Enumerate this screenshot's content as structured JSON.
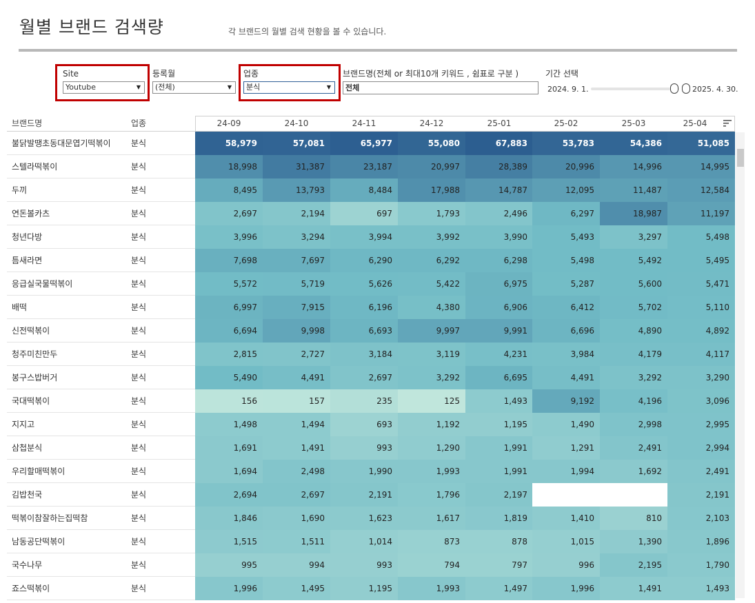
{
  "page": {
    "title": "월별 브랜드 검색량",
    "subtitle": "각 브랜드의 월별 검색 현황을 볼 수 있습니다."
  },
  "filters": {
    "site": {
      "label": "Site",
      "value": "Youtube"
    },
    "reg_month": {
      "label": "등록월",
      "value": "(전체)"
    },
    "category": {
      "label": "업종",
      "value": "분식"
    },
    "brand": {
      "label": "브랜드명(전체 or 최대10개 키워드 , 쉼표로 구분 )",
      "value": "전체"
    },
    "period": {
      "label": "기간 선택",
      "start": "2024. 9. 1.",
      "end": "2025. 4. 30."
    }
  },
  "table": {
    "col_brand": "브랜드명",
    "col_category": "업종",
    "months": [
      "24-09",
      "24-10",
      "24-11",
      "24-12",
      "25-01",
      "25-02",
      "25-03",
      "25-04"
    ],
    "rows": [
      {
        "brand": "불닭발땡초동대문엽기떡볶이",
        "category": "분식",
        "values": [
          "58,979",
          "57,081",
          "65,977",
          "55,080",
          "67,883",
          "53,783",
          "54,386",
          "51,085"
        ]
      },
      {
        "brand": "스텔라떡볶이",
        "category": "분식",
        "values": [
          "18,998",
          "31,387",
          "23,187",
          "20,997",
          "28,389",
          "20,996",
          "14,996",
          "14,995"
        ]
      },
      {
        "brand": "두끼",
        "category": "분식",
        "values": [
          "8,495",
          "13,793",
          "8,484",
          "17,988",
          "14,787",
          "12,095",
          "11,487",
          "12,584"
        ]
      },
      {
        "brand": "연돈볼카츠",
        "category": "분식",
        "values": [
          "2,697",
          "2,194",
          "697",
          "1,793",
          "2,496",
          "6,297",
          "18,987",
          "11,197"
        ]
      },
      {
        "brand": "청년다방",
        "category": "분식",
        "values": [
          "3,996",
          "3,294",
          "3,994",
          "3,992",
          "3,990",
          "5,493",
          "3,297",
          "5,498"
        ]
      },
      {
        "brand": "틈새라면",
        "category": "분식",
        "values": [
          "7,698",
          "7,697",
          "6,290",
          "6,292",
          "6,298",
          "5,498",
          "5,492",
          "5,495"
        ]
      },
      {
        "brand": "응급실국물떡볶이",
        "category": "분식",
        "values": [
          "5,572",
          "5,719",
          "5,626",
          "5,422",
          "6,975",
          "5,287",
          "5,600",
          "5,471"
        ]
      },
      {
        "brand": "배떡",
        "category": "분식",
        "values": [
          "6,997",
          "7,915",
          "6,196",
          "4,380",
          "6,906",
          "6,412",
          "5,702",
          "5,110"
        ]
      },
      {
        "brand": "신전떡볶이",
        "category": "분식",
        "values": [
          "6,694",
          "9,998",
          "6,693",
          "9,997",
          "9,991",
          "6,696",
          "4,890",
          "4,892"
        ]
      },
      {
        "brand": "청주미친만두",
        "category": "분식",
        "values": [
          "2,815",
          "2,727",
          "3,184",
          "3,119",
          "4,231",
          "3,984",
          "4,179",
          "4,117"
        ]
      },
      {
        "brand": "봉구스밥버거",
        "category": "분식",
        "values": [
          "5,490",
          "4,491",
          "2,697",
          "3,292",
          "6,695",
          "4,491",
          "3,292",
          "3,290"
        ]
      },
      {
        "brand": "국대떡볶이",
        "category": "분식",
        "values": [
          "156",
          "157",
          "235",
          "125",
          "1,493",
          "9,192",
          "4,196",
          "3,096"
        ]
      },
      {
        "brand": "지지고",
        "category": "분식",
        "values": [
          "1,498",
          "1,494",
          "693",
          "1,192",
          "1,195",
          "1,490",
          "2,998",
          "2,995"
        ]
      },
      {
        "brand": "삼첩분식",
        "category": "분식",
        "values": [
          "1,691",
          "1,491",
          "993",
          "1,290",
          "1,991",
          "1,291",
          "2,491",
          "2,994"
        ]
      },
      {
        "brand": "우리할매떡볶이",
        "category": "분식",
        "values": [
          "1,694",
          "2,498",
          "1,990",
          "1,993",
          "1,991",
          "1,994",
          "1,692",
          "2,491"
        ]
      },
      {
        "brand": "김밥천국",
        "category": "분식",
        "values": [
          "2,694",
          "2,697",
          "2,191",
          "1,796",
          "2,197",
          "",
          "",
          "2,191"
        ]
      },
      {
        "brand": "떡볶이참잘하는집떡참",
        "category": "분식",
        "values": [
          "1,846",
          "1,690",
          "1,623",
          "1,617",
          "1,819",
          "1,410",
          "810",
          "2,103"
        ]
      },
      {
        "brand": "남동공단떡볶이",
        "category": "분식",
        "values": [
          "1,515",
          "1,511",
          "1,014",
          "873",
          "878",
          "1,015",
          "1,390",
          "1,896"
        ]
      },
      {
        "brand": "국수나무",
        "category": "분식",
        "values": [
          "995",
          "994",
          "993",
          "794",
          "797",
          "996",
          "2,195",
          "1,790"
        ]
      },
      {
        "brand": "죠스떡볶이",
        "category": "분식",
        "values": [
          "1,996",
          "1,495",
          "1,195",
          "1,993",
          "1,497",
          "1,996",
          "1,491",
          "1,493"
        ]
      }
    ]
  },
  "colors": {
    "highlight": "#c00000",
    "heat_low": "#bfe5da",
    "heat_high": "#2c5d8f"
  }
}
